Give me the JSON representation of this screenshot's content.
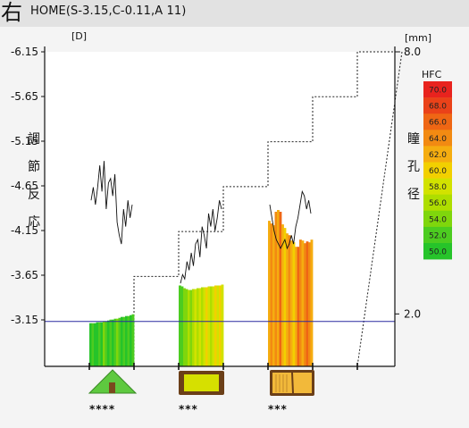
{
  "header": {
    "eye_label": "右",
    "title": "HOME(S-3.15,C-0.11,A 11)"
  },
  "chart_data": {
    "type": "bar",
    "left_axis": {
      "unit": "[D]",
      "label_chars": [
        "調",
        "節",
        "反",
        "応"
      ],
      "ticks": [
        "-6.15",
        "-5.65",
        "-5.15",
        "-4.65",
        "-4.15",
        "-3.65",
        "-3.15"
      ],
      "ylim": [
        -6.15,
        -2.65
      ],
      "inverted": true
    },
    "right_axis": {
      "unit": "[mm]",
      "label_chars": [
        "瞳",
        "孔",
        "径"
      ],
      "ticks": [
        "8.0",
        "2.0"
      ],
      "ylim": [
        0.8,
        8.0
      ]
    },
    "reference_line": {
      "value": -3.15,
      "color": "#2a2aa0"
    },
    "legend": {
      "title": "HFC",
      "placement": "right",
      "entries": [
        {
          "label": "70.0",
          "color": "#e8231e"
        },
        {
          "label": "68.0",
          "color": "#ea4219"
        },
        {
          "label": "66.0",
          "color": "#ef6614"
        },
        {
          "label": "64.0",
          "color": "#f28a12"
        },
        {
          "label": "62.0",
          "color": "#f5ad10"
        },
        {
          "label": "60.0",
          "color": "#f2d000"
        },
        {
          "label": "58.0",
          "color": "#d2e200"
        },
        {
          "label": "56.0",
          "color": "#aede00"
        },
        {
          "label": "54.0",
          "color": "#7fd60c"
        },
        {
          "label": "52.0",
          "color": "#4ccc20"
        },
        {
          "label": "50.0",
          "color": "#26c42a"
        }
      ]
    },
    "stimulus_steps": [
      -3.65,
      -4.15,
      -4.65,
      -5.15,
      -5.65,
      -6.15
    ],
    "groups": [
      {
        "icon": "tree-icon",
        "rating": "****",
        "bar_tops": [
          -3.13,
          -3.13,
          -3.13,
          -3.14,
          -3.14,
          -3.14,
          -3.15,
          -3.15,
          -3.16,
          -3.17,
          -3.17,
          -3.18,
          -3.18,
          -3.19,
          -3.2,
          -3.2,
          -3.21,
          -3.21,
          -3.22,
          -3.23
        ],
        "bar_colors": [
          "#26c42a",
          "#4ccc20",
          "#26c42a",
          "#26c42a",
          "#4ccc20",
          "#26c42a",
          "#7fd60c",
          "#4ccc20",
          "#26c42a",
          "#4ccc20",
          "#26c42a",
          "#4ccc20",
          "#7fd60c",
          "#4ccc20",
          "#26c42a",
          "#4ccc20",
          "#26c42a",
          "#4ccc20",
          "#26c42a",
          "#4ccc20"
        ],
        "pupil": [
          4.6,
          4.9,
          4.5,
          4.9,
          5.4,
          4.8,
          5.5,
          4.4,
          5.0,
          5.1,
          4.7,
          5.2,
          4.1,
          3.8,
          3.6,
          4.4,
          4.0,
          4.6,
          4.2,
          4.5
        ]
      },
      {
        "icon": "monitor-icon",
        "rating": "***",
        "bar_tops": [
          -3.55,
          -3.54,
          -3.52,
          -3.51,
          -3.5,
          -3.5,
          -3.51,
          -3.51,
          -3.52,
          -3.52,
          -3.53,
          -3.53,
          -3.53,
          -3.54,
          -3.54,
          -3.54,
          -3.55,
          -3.55,
          -3.55,
          -3.56
        ],
        "bar_colors": [
          "#4ccc20",
          "#4ccc20",
          "#7fd60c",
          "#7fd60c",
          "#aede00",
          "#7fd60c",
          "#aede00",
          "#d2e200",
          "#aede00",
          "#d2e200",
          "#aede00",
          "#d2e200",
          "#f2d000",
          "#d2e200",
          "#aede00",
          "#d2e200",
          "#f2d000",
          "#d2e200",
          "#f2d000",
          "#d2e200"
        ],
        "pupil": [
          2.7,
          2.9,
          2.8,
          3.2,
          3.0,
          3.4,
          3.1,
          3.6,
          3.7,
          3.3,
          4.0,
          3.8,
          3.5,
          4.3,
          4.0,
          4.4,
          3.9,
          4.2,
          4.6,
          4.4
        ]
      },
      {
        "icon": "book-icon",
        "rating": "***",
        "bar_tops": [
          -4.27,
          -4.24,
          -4.22,
          -4.37,
          -4.39,
          -4.37,
          -4.23,
          -4.19,
          -4.13,
          -4.11,
          -4.05,
          -4.03,
          -3.98,
          -3.98,
          -4.06,
          -4.05,
          -4.02,
          -4.04,
          -4.03,
          -4.06
        ],
        "bar_colors": [
          "#f5ad10",
          "#f28a12",
          "#f5ad10",
          "#f28a12",
          "#f5ad10",
          "#ef6614",
          "#f5ad10",
          "#f2d000",
          "#f5ad10",
          "#f28a12",
          "#f5ad10",
          "#f2d000",
          "#f5ad10",
          "#ef6614",
          "#f28a12",
          "#f5ad10",
          "#f28a12",
          "#ef6614",
          "#f28a12",
          "#f5ad10"
        ],
        "pupil": [
          4.5,
          4.2,
          3.9,
          3.7,
          3.6,
          3.5,
          3.6,
          3.7,
          3.5,
          3.6,
          3.8,
          3.6,
          4.0,
          4.2,
          4.5,
          4.8,
          4.7,
          4.4,
          4.6,
          4.3
        ]
      }
    ]
  },
  "colors": {
    "plot_background": "#ffffff",
    "axis": "#111111",
    "stimulus_line": "#222222"
  }
}
